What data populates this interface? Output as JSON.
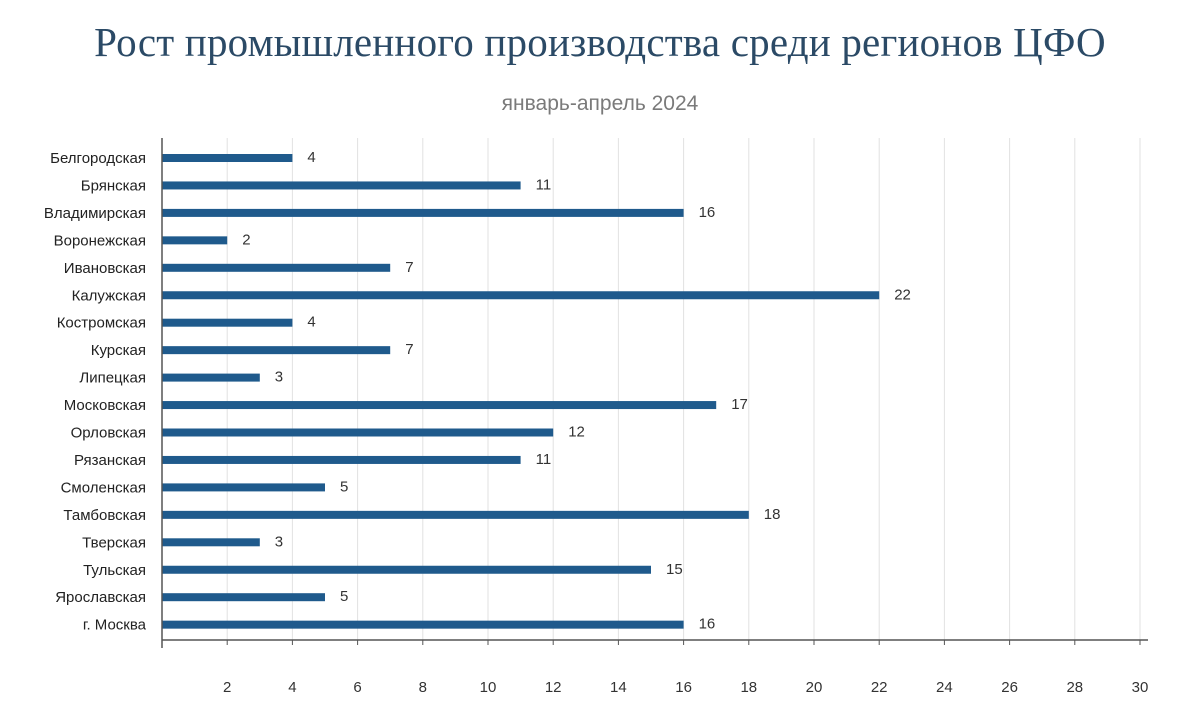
{
  "chart_data": {
    "type": "bar",
    "orientation": "horizontal",
    "title": "Рост промышленного производства среди регионов ЦФО",
    "subtitle": "январь-апрель 2024",
    "categories": [
      "Белгородская",
      "Брянская",
      "Владимирская",
      "Воронежская",
      "Ивановская",
      "Калужская",
      "Костромская",
      "Курская",
      "Липецкая",
      "Московская",
      "Орловская",
      "Рязанская",
      "Смоленская",
      "Тамбовская",
      "Тверская",
      "Тульская",
      "Ярославская",
      "г. Москва"
    ],
    "values": [
      4,
      11,
      16,
      2,
      7,
      22,
      4,
      7,
      3,
      17,
      12,
      11,
      5,
      18,
      3,
      15,
      5,
      16
    ],
    "xlim": [
      0,
      30
    ],
    "x_ticks": [
      2,
      4,
      6,
      8,
      10,
      12,
      14,
      16,
      18,
      20,
      22,
      24,
      26,
      28,
      30
    ],
    "xlabel": "",
    "ylabel": "",
    "grid": true,
    "bar_color": "#1f5a8c"
  }
}
